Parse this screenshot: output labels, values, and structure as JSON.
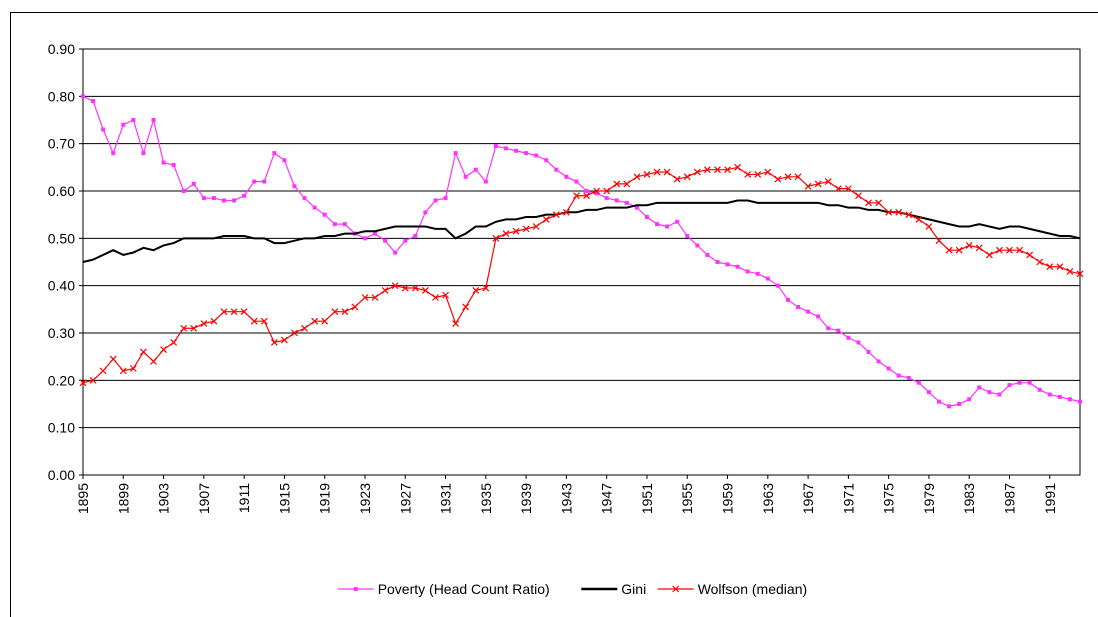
{
  "chart_data": {
    "type": "line",
    "x": [
      1895,
      1896,
      1897,
      1898,
      1899,
      1900,
      1901,
      1902,
      1903,
      1904,
      1905,
      1906,
      1907,
      1908,
      1909,
      1910,
      1911,
      1912,
      1913,
      1914,
      1915,
      1916,
      1917,
      1918,
      1919,
      1920,
      1921,
      1922,
      1923,
      1924,
      1925,
      1926,
      1927,
      1928,
      1929,
      1930,
      1931,
      1932,
      1933,
      1934,
      1935,
      1936,
      1937,
      1938,
      1939,
      1940,
      1941,
      1942,
      1943,
      1944,
      1945,
      1946,
      1947,
      1948,
      1949,
      1950,
      1951,
      1952,
      1953,
      1954,
      1955,
      1956,
      1957,
      1958,
      1959,
      1960,
      1961,
      1962,
      1963,
      1964,
      1965,
      1966,
      1967,
      1968,
      1969,
      1970,
      1971,
      1972,
      1973,
      1974,
      1975,
      1976,
      1977,
      1978,
      1979,
      1980,
      1981,
      1982,
      1983,
      1984,
      1985,
      1986,
      1987,
      1988,
      1989,
      1990,
      1991,
      1992,
      1993,
      1994
    ],
    "xlim": [
      1895,
      1994
    ],
    "xticks": [
      1895,
      1899,
      1903,
      1907,
      1911,
      1915,
      1919,
      1923,
      1927,
      1931,
      1935,
      1939,
      1943,
      1947,
      1951,
      1955,
      1959,
      1963,
      1967,
      1971,
      1975,
      1979,
      1983,
      1987,
      1991
    ],
    "ylim": [
      0,
      0.9
    ],
    "yticks": [
      {
        "value": 0,
        "label": "0.00"
      },
      {
        "value": 0.1,
        "label": "0.10"
      },
      {
        "value": 0.2,
        "label": "0.20"
      },
      {
        "value": 0.3,
        "label": "0.30"
      },
      {
        "value": 0.4,
        "label": "0.40"
      },
      {
        "value": 0.5,
        "label": "0.50"
      },
      {
        "value": 0.6,
        "label": "0.60"
      },
      {
        "value": 0.7,
        "label": "0.70"
      },
      {
        "value": 0.8,
        "label": "0.80"
      },
      {
        "value": 0.9,
        "label": "0.90"
      }
    ],
    "grid": true,
    "legend": "bottom",
    "series": [
      {
        "name": "Poverty (Head Count Ratio)",
        "color": "#ff33ff",
        "marker": "square",
        "values": [
          0.8,
          0.79,
          0.73,
          0.68,
          0.74,
          0.75,
          0.68,
          0.75,
          0.66,
          0.655,
          0.6,
          0.615,
          0.585,
          0.585,
          0.58,
          0.58,
          0.59,
          0.62,
          0.62,
          0.68,
          0.665,
          0.61,
          0.585,
          0.565,
          0.55,
          0.53,
          0.53,
          0.51,
          0.5,
          0.51,
          0.495,
          0.47,
          0.495,
          0.505,
          0.555,
          0.58,
          0.585,
          0.68,
          0.63,
          0.645,
          0.62,
          0.695,
          0.69,
          0.685,
          0.68,
          0.675,
          0.665,
          0.645,
          0.63,
          0.62,
          0.6,
          0.595,
          0.585,
          0.58,
          0.575,
          0.565,
          0.545,
          0.53,
          0.525,
          0.535,
          0.505,
          0.485,
          0.465,
          0.45,
          0.445,
          0.44,
          0.43,
          0.425,
          0.415,
          0.4,
          0.37,
          0.355,
          0.345,
          0.335,
          0.31,
          0.305,
          0.29,
          0.28,
          0.26,
          0.24,
          0.225,
          0.21,
          0.205,
          0.195,
          0.175,
          0.155,
          0.145,
          0.15,
          0.16,
          0.185,
          0.175,
          0.17,
          0.19,
          0.195,
          0.195,
          0.18,
          0.17,
          0.165,
          0.16,
          0.155
        ]
      },
      {
        "name": "Gini",
        "color": "#000000",
        "marker": "none",
        "values": [
          0.45,
          0.455,
          0.465,
          0.475,
          0.465,
          0.47,
          0.48,
          0.475,
          0.485,
          0.49,
          0.5,
          0.5,
          0.5,
          0.5,
          0.505,
          0.505,
          0.505,
          0.5,
          0.5,
          0.49,
          0.49,
          0.495,
          0.5,
          0.5,
          0.505,
          0.505,
          0.51,
          0.51,
          0.515,
          0.515,
          0.52,
          0.525,
          0.525,
          0.525,
          0.525,
          0.52,
          0.52,
          0.5,
          0.51,
          0.525,
          0.525,
          0.535,
          0.54,
          0.54,
          0.545,
          0.545,
          0.55,
          0.55,
          0.555,
          0.555,
          0.56,
          0.56,
          0.565,
          0.565,
          0.565,
          0.57,
          0.57,
          0.575,
          0.575,
          0.575,
          0.575,
          0.575,
          0.575,
          0.575,
          0.575,
          0.58,
          0.58,
          0.575,
          0.575,
          0.575,
          0.575,
          0.575,
          0.575,
          0.575,
          0.57,
          0.57,
          0.565,
          0.565,
          0.56,
          0.56,
          0.555,
          0.555,
          0.55,
          0.545,
          0.54,
          0.535,
          0.53,
          0.525,
          0.525,
          0.53,
          0.525,
          0.52,
          0.525,
          0.525,
          0.52,
          0.515,
          0.51,
          0.505,
          0.505,
          0.5
        ]
      },
      {
        "name": "Wolfson (median)",
        "color": "#ff0000",
        "marker": "x",
        "values": [
          0.195,
          0.2,
          0.22,
          0.245,
          0.22,
          0.225,
          0.26,
          0.24,
          0.265,
          0.28,
          0.31,
          0.31,
          0.32,
          0.325,
          0.345,
          0.345,
          0.345,
          0.325,
          0.325,
          0.28,
          0.285,
          0.3,
          0.31,
          0.325,
          0.325,
          0.345,
          0.345,
          0.355,
          0.375,
          0.375,
          0.39,
          0.4,
          0.395,
          0.395,
          0.39,
          0.375,
          0.38,
          0.32,
          0.355,
          0.39,
          0.395,
          0.5,
          0.51,
          0.515,
          0.52,
          0.525,
          0.54,
          0.55,
          0.555,
          0.59,
          0.59,
          0.6,
          0.6,
          0.615,
          0.615,
          0.63,
          0.635,
          0.64,
          0.64,
          0.625,
          0.63,
          0.64,
          0.645,
          0.645,
          0.645,
          0.65,
          0.635,
          0.635,
          0.64,
          0.625,
          0.63,
          0.63,
          0.61,
          0.615,
          0.62,
          0.605,
          0.605,
          0.59,
          0.575,
          0.575,
          0.555,
          0.555,
          0.55,
          0.54,
          0.525,
          0.495,
          0.475,
          0.475,
          0.485,
          0.48,
          0.465,
          0.475,
          0.475,
          0.475,
          0.465,
          0.45,
          0.44,
          0.44,
          0.43,
          0.425
        ]
      }
    ]
  }
}
